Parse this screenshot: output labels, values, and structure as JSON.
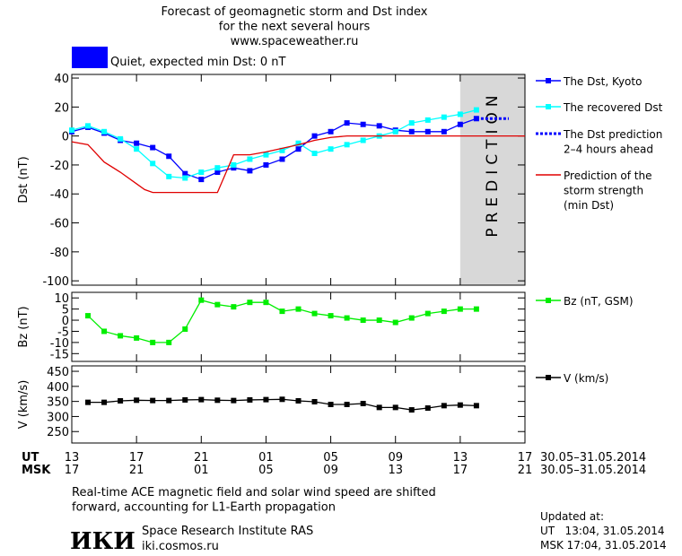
{
  "header": {
    "title": "Forecast of geomagnetic storm and Dst index\nfor the next several hours\nwww.spaceweather.ru",
    "status": "Quiet, expected min Dst: 0 nT",
    "status_color": "#0000ff"
  },
  "chart_data": [
    {
      "type": "line",
      "ylabel": "Dst (nT)",
      "xlim": [
        0,
        28
      ],
      "ylim": [
        -103,
        42.5
      ],
      "yticks": [
        40,
        20,
        0,
        -20,
        -40,
        -60,
        -80,
        -100
      ],
      "annotation": "PREDICTION",
      "prediction_span": [
        24,
        28
      ],
      "series": [
        {
          "name": "The Dst, Kyoto",
          "color": "#0000ff",
          "marker": true,
          "x": [
            0,
            1,
            2,
            3,
            4,
            5,
            6,
            7,
            8,
            9,
            10,
            11,
            12,
            13,
            14,
            15,
            16,
            17,
            18,
            19,
            20,
            21,
            22,
            23,
            24,
            25
          ],
          "values": [
            3,
            6,
            2,
            -3,
            -5,
            -8,
            -14,
            -26,
            -30,
            -25,
            -22,
            -24,
            -20,
            -16,
            -9,
            0,
            3,
            9,
            8,
            7,
            4,
            3,
            3,
            3,
            8,
            12
          ]
        },
        {
          "name": "The recovered Dst",
          "color": "#00ffff",
          "marker": true,
          "x": [
            0,
            1,
            2,
            3,
            4,
            5,
            6,
            7,
            8,
            9,
            10,
            11,
            12,
            13,
            14,
            15,
            16,
            17,
            18,
            19,
            20,
            21,
            22,
            23,
            24,
            25
          ],
          "values": [
            4,
            7,
            3,
            -2,
            -9,
            -19,
            -28,
            -29,
            -25,
            -22,
            -20,
            -16,
            -13,
            -10,
            -5,
            -12,
            -9,
            -6,
            -3,
            0,
            3,
            9,
            11,
            13,
            15,
            18
          ]
        },
        {
          "name": "The Dst prediction\n2–4 hours ahead",
          "color": "#0000ff",
          "dash": true,
          "x": [
            25,
            27
          ],
          "values": [
            12,
            12
          ]
        },
        {
          "name": "Prediction of the\nstorm strength\n(min Dst)",
          "color": "#e00000",
          "x": [
            0,
            1,
            2,
            3,
            4,
            4.5,
            5,
            9,
            10,
            11,
            12,
            14,
            15,
            16,
            17,
            28
          ],
          "values": [
            -4,
            -6,
            -18,
            -25,
            -33,
            -37,
            -39,
            -39,
            -13,
            -13,
            -11,
            -6,
            -3,
            -1,
            0,
            0
          ]
        }
      ]
    },
    {
      "type": "line",
      "ylabel": "Bz (nT)",
      "xlim": [
        0,
        28
      ],
      "ylim": [
        -18.5,
        12.5
      ],
      "yticks": [
        10,
        5,
        0,
        -5,
        -10,
        -15
      ],
      "series": [
        {
          "name": "Bz (nT, GSM)",
          "color": "#00ee00",
          "marker": true,
          "x": [
            1,
            2,
            3,
            4,
            5,
            6,
            7,
            8,
            9,
            10,
            11,
            12,
            13,
            14,
            15,
            16,
            17,
            18,
            19,
            20,
            21,
            22,
            23,
            24,
            25
          ],
          "values": [
            2,
            -5,
            -7,
            -8,
            -10,
            -10,
            -4,
            9,
            7,
            6,
            8,
            8,
            4,
            5,
            3,
            2,
            1,
            0,
            0,
            -1,
            1,
            3,
            4,
            5,
            5
          ]
        }
      ]
    },
    {
      "type": "line",
      "ylabel": "V (km/s)",
      "xlim": [
        0,
        28
      ],
      "ylim": [
        212,
        468
      ],
      "yticks": [
        450,
        400,
        350,
        300,
        250
      ],
      "xticks_title": "UT",
      "x2ticks_title": "MSK",
      "date_range": "30.05–31.05.2014",
      "xticks": [
        {
          "value": 0,
          "label": "13"
        },
        {
          "value": 4,
          "label": "17"
        },
        {
          "value": 8,
          "label": "21"
        },
        {
          "value": 12,
          "label": "01"
        },
        {
          "value": 16,
          "label": "05"
        },
        {
          "value": 20,
          "label": "09"
        },
        {
          "value": 24,
          "label": "13"
        },
        {
          "value": 28,
          "label": "17"
        }
      ],
      "x2ticks": [
        {
          "value": 0,
          "label": "17"
        },
        {
          "value": 4,
          "label": "21"
        },
        {
          "value": 8,
          "label": "01"
        },
        {
          "value": 12,
          "label": "05"
        },
        {
          "value": 16,
          "label": "09"
        },
        {
          "value": 20,
          "label": "13"
        },
        {
          "value": 24,
          "label": "17"
        },
        {
          "value": 28,
          "label": "21"
        }
      ],
      "series": [
        {
          "name": "V (km/s)",
          "color": "#000000",
          "marker": true,
          "x": [
            1,
            2,
            3,
            4,
            5,
            6,
            7,
            8,
            9,
            10,
            11,
            12,
            13,
            14,
            15,
            16,
            17,
            18,
            19,
            20,
            21,
            22,
            23,
            24,
            25
          ],
          "values": [
            347,
            347,
            352,
            354,
            353,
            353,
            355,
            356,
            354,
            353,
            355,
            356,
            357,
            352,
            349,
            340,
            340,
            343,
            330,
            330,
            322,
            328,
            336,
            338,
            336
          ]
        }
      ]
    }
  ],
  "note": "Real-time ACE magnetic field and solar wind speed are shifted\nforward, accounting for L1-Earth propagation",
  "footer": {
    "logo": "ИКИ",
    "institute": "Space Research Institute RAS",
    "site": "iki.cosmos.ru",
    "updated": "Updated at:",
    "ut": "UT   13:04, 31.05.2014",
    "msk": "MSK 17:04, 31.05.2014"
  }
}
